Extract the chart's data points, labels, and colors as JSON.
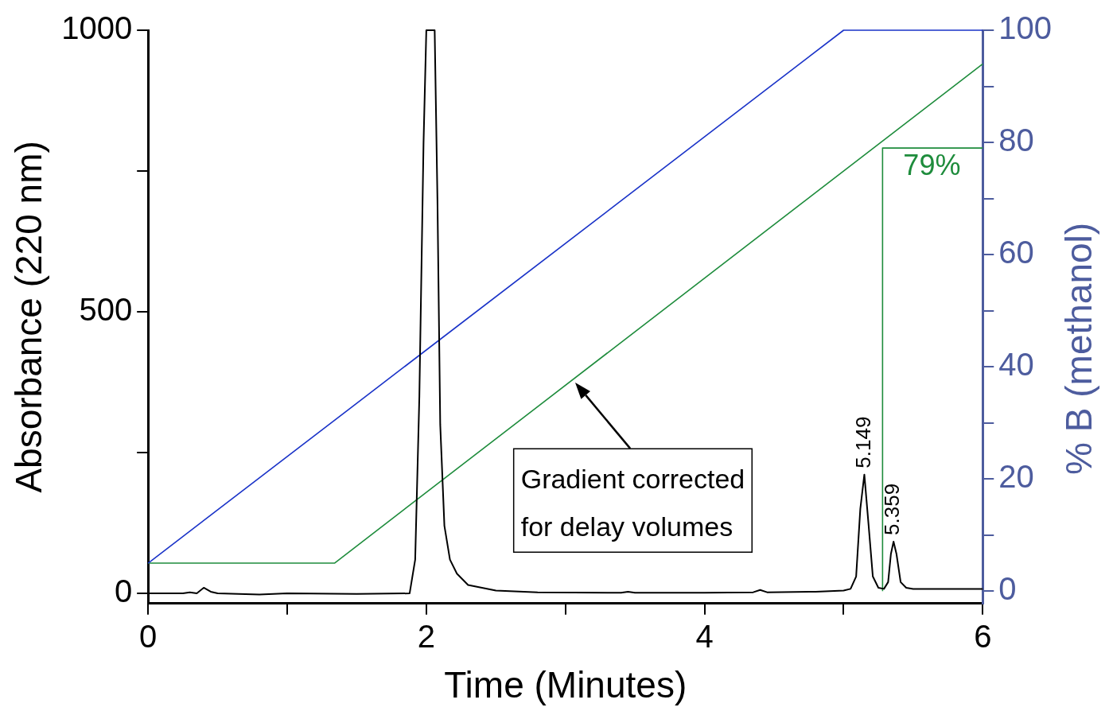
{
  "chart_data": {
    "type": "line",
    "xlabel": "Time (Minutes)",
    "ylabel": "Absorbance (220 nm)",
    "y2label": "% B (methanol)",
    "xlim": [
      0,
      6
    ],
    "xticks": [
      0,
      {
        "value": 1,
        "label": null
      },
      2,
      {
        "value": 3,
        "label": null
      },
      4,
      {
        "value": 5,
        "label": null
      },
      6
    ],
    "ylim": [
      -18,
      1000
    ],
    "yticks": [
      0,
      {
        "value": 250,
        "label": null
      },
      500,
      {
        "value": 750,
        "label": null
      },
      1000
    ],
    "y2lim": [
      -2.2,
      100
    ],
    "y2ticks": [
      0,
      {
        "value": 10,
        "label": null
      },
      20,
      {
        "value": 30,
        "label": null
      },
      40,
      {
        "value": 50,
        "label": null
      },
      60,
      {
        "value": 70,
        "label": null
      },
      80,
      {
        "value": 90,
        "label": null
      },
      100
    ],
    "grid": false,
    "legend": false,
    "marker": "none",
    "series": [
      {
        "color": "#000000",
        "x": [
          0,
          0.25,
          0.3,
          0.35,
          0.4,
          0.45,
          0.5,
          0.8,
          1.0,
          1.5,
          1.88,
          1.92,
          1.95,
          1.98,
          2.0,
          2.06,
          2.08,
          2.1,
          2.13,
          2.17,
          2.22,
          2.3,
          2.5,
          2.8,
          3.4,
          3.45,
          3.5,
          4.0,
          4.35,
          4.4,
          4.45,
          4.8,
          5.0,
          5.05,
          5.09,
          5.12,
          5.149,
          5.18,
          5.21,
          5.25,
          5.29,
          5.32,
          5.34,
          5.359,
          5.38,
          5.41,
          5.45,
          5.5,
          6
        ],
        "values": [
          0,
          0,
          2,
          0,
          10,
          3,
          0,
          -2,
          0,
          -1,
          0,
          60,
          350,
          800,
          1000,
          1000,
          700,
          300,
          120,
          60,
          35,
          15,
          5,
          2,
          1,
          3,
          1,
          1,
          2,
          6,
          2,
          3,
          5,
          8,
          30,
          150,
          211,
          120,
          30,
          10,
          8,
          20,
          70,
          92,
          70,
          20,
          10,
          8,
          8
        ]
      },
      {
        "color": "#1a33c8",
        "axis": "y2",
        "x": [
          0,
          5,
          6
        ],
        "values": [
          5,
          100,
          100
        ]
      },
      {
        "color": "#1e8c3c",
        "axis": "y2",
        "x": [
          0,
          1.34,
          6
        ],
        "values": [
          5,
          5,
          94
        ]
      },
      {
        "color": "#1e8c3c",
        "axis": "y2",
        "x": [
          5.28,
          5.28,
          6
        ],
        "values": [
          0,
          79,
          79
        ]
      }
    ],
    "annotations": [
      "79%",
      {
        "text": "5.149",
        "x": 5.149,
        "y": 211
      },
      {
        "text": "5.359",
        "x": 5.359,
        "y": 92
      },
      "Gradient corrected\nfor delay volumes"
    ]
  }
}
